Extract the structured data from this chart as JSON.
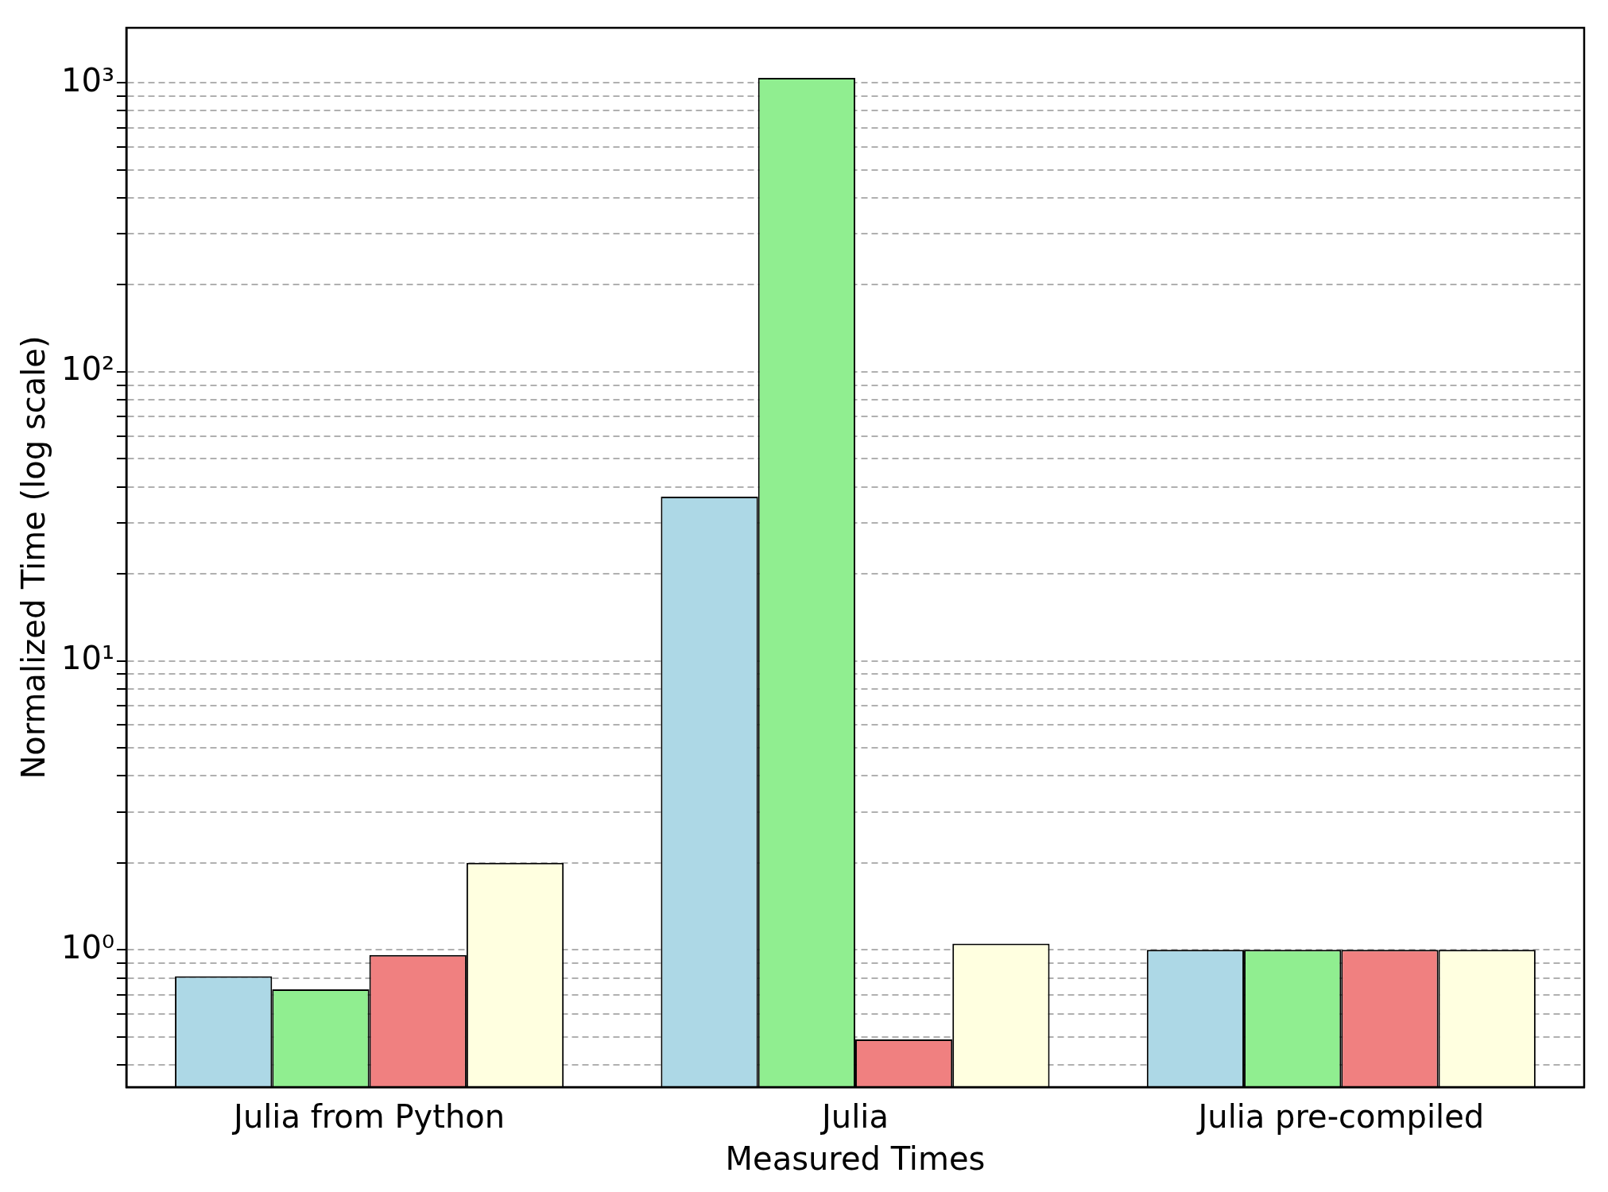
{
  "chart_data": {
    "type": "bar",
    "xlabel": "Measured Times",
    "ylabel": "Normalized Time (log scale)",
    "categories": [
      "Julia from Python",
      "Julia",
      "Julia pre-compiled"
    ],
    "series": [
      {
        "color": "#add8e6",
        "values": [
          0.81,
          37,
          1.0
        ]
      },
      {
        "color": "#90ee90",
        "values": [
          0.73,
          1040,
          1.0
        ]
      },
      {
        "color": "#f08080",
        "values": [
          0.96,
          0.49,
          1.0
        ]
      },
      {
        "color": "#ffffe0",
        "values": [
          2.0,
          1.05,
          1.0
        ]
      }
    ],
    "log": "y",
    "ylim": [
      0.335,
      1550
    ],
    "yticks": [
      {
        "value": 0.4,
        "label": null
      },
      {
        "value": 0.5,
        "label": null
      },
      {
        "value": 0.6,
        "label": null
      },
      {
        "value": 0.7,
        "label": null
      },
      {
        "value": 0.8,
        "label": null
      },
      {
        "value": 0.9,
        "label": null
      },
      {
        "value": 1,
        "label": "10⁰"
      },
      {
        "value": 2,
        "label": null
      },
      {
        "value": 3,
        "label": null
      },
      {
        "value": 4,
        "label": null
      },
      {
        "value": 5,
        "label": null
      },
      {
        "value": 6,
        "label": null
      },
      {
        "value": 7,
        "label": null
      },
      {
        "value": 8,
        "label": null
      },
      {
        "value": 9,
        "label": null
      },
      {
        "value": 10,
        "label": "10¹"
      },
      {
        "value": 20,
        "label": null
      },
      {
        "value": 30,
        "label": null
      },
      {
        "value": 40,
        "label": null
      },
      {
        "value": 50,
        "label": null
      },
      {
        "value": 60,
        "label": null
      },
      {
        "value": 70,
        "label": null
      },
      {
        "value": 80,
        "label": null
      },
      {
        "value": 90,
        "label": null
      },
      {
        "value": 100,
        "label": "10²"
      },
      {
        "value": 200,
        "label": null
      },
      {
        "value": 300,
        "label": null
      },
      {
        "value": 400,
        "label": null
      },
      {
        "value": 500,
        "label": null
      },
      {
        "value": 600,
        "label": null
      },
      {
        "value": 700,
        "label": null
      },
      {
        "value": 800,
        "label": null
      },
      {
        "value": 900,
        "label": null
      },
      {
        "value": 1000,
        "label": "10³"
      }
    ],
    "grid": "y",
    "legend": false
  }
}
